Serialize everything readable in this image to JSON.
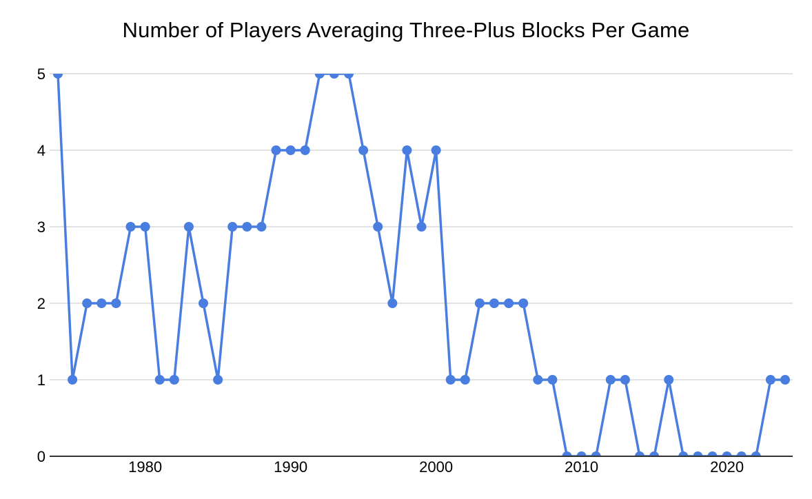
{
  "chart_data": {
    "type": "line",
    "title": "Number of Players Averaging Three-Plus Blocks Per Game",
    "xlabel": "",
    "ylabel": "",
    "x": [
      1974,
      1975,
      1976,
      1977,
      1978,
      1979,
      1980,
      1981,
      1982,
      1983,
      1984,
      1985,
      1986,
      1987,
      1988,
      1989,
      1990,
      1991,
      1992,
      1993,
      1994,
      1995,
      1996,
      1997,
      1998,
      1999,
      2000,
      2001,
      2002,
      2003,
      2004,
      2005,
      2006,
      2007,
      2008,
      2009,
      2010,
      2011,
      2012,
      2013,
      2014,
      2015,
      2016,
      2017,
      2018,
      2019,
      2020,
      2021,
      2022,
      2023,
      2024
    ],
    "values": [
      5,
      1,
      2,
      2,
      2,
      3,
      3,
      1,
      1,
      3,
      2,
      1,
      3,
      3,
      3,
      4,
      4,
      4,
      5,
      5,
      5,
      4,
      3,
      2,
      4,
      3,
      4,
      1,
      1,
      2,
      2,
      2,
      2,
      1,
      1,
      0,
      0,
      0,
      1,
      1,
      0,
      0,
      1,
      0,
      0,
      0,
      0,
      0,
      0,
      1,
      1
    ],
    "ylim": [
      0,
      5
    ],
    "y_ticks": [
      "0",
      "1",
      "2",
      "3",
      "4",
      "5"
    ],
    "x_tick_labels": [
      "1980",
      "1990",
      "2000",
      "2010",
      "2020"
    ],
    "x_tick_years": [
      1980,
      1990,
      2000,
      2010,
      2020
    ],
    "grid": "horizontal",
    "legend": "none",
    "marker": "circle",
    "colors": {
      "line": "#4a7de0",
      "marker": "#4a7de0",
      "gridline": "#d9d9d9",
      "axis": "#333333",
      "tick_text": "#000000",
      "title_text": "#000000",
      "background": "#ffffff"
    }
  }
}
